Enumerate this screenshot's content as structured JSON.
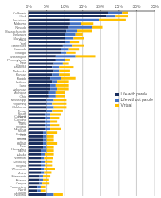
{
  "chart_data": {
    "type": "bar",
    "orientation": "horizontal",
    "stacked": true,
    "grid": true,
    "legend": "right",
    "categories": [
      "California",
      "Utah",
      "Louisiana",
      "Alabama",
      "Nevada",
      "Massachusetts",
      "Delaware",
      "Maryland",
      "New York",
      "Tennessee",
      "Colorado",
      "Georgia",
      "Washington",
      "Pennsylvania",
      "New Mexico",
      "Montana",
      "Nebraska",
      "Kansas",
      "Florida",
      "Indiana",
      "Iowa",
      "Arkansas",
      "Michigan",
      "Ohio",
      "Mississippi",
      "Wyoming",
      "Oklahoma",
      "Texas",
      "South Carolina",
      "North Carolina",
      "Illinois",
      "West Virginia",
      "Missouri",
      "South Dakota",
      "New Jersey",
      "Rhode Island",
      "Hawaii",
      "New Hampshire",
      "Idaho",
      "Alaska",
      "Vermont",
      "Kentucky",
      "Virginia",
      "Wisconsin",
      "Maine",
      "Minnesota",
      "Arizona",
      "Oregon",
      "Connecticut",
      "North Dakota",
      "National"
    ],
    "series": [
      {
        "name": "Life with parole",
        "color": "#1a2e5e",
        "values": [
          22.0,
          21.5,
          11.5,
          11.5,
          11.0,
          10.5,
          10.0,
          10.0,
          10.0,
          9.5,
          9.0,
          9.0,
          7.5,
          7.5,
          7.0,
          6.5,
          7.0,
          6.5,
          6.0,
          6.5,
          6.0,
          6.0,
          5.5,
          5.5,
          5.0,
          5.0,
          5.0,
          5.0,
          4.5,
          4.5,
          4.5,
          4.5,
          4.5,
          4.0,
          4.0,
          4.0,
          4.0,
          4.0,
          3.5,
          3.5,
          3.5,
          3.5,
          3.5,
          3.5,
          3.5,
          3.0,
          3.0,
          3.0,
          2.5,
          2.5,
          5.0
        ]
      },
      {
        "name": "Life without parole",
        "color": "#4472c4",
        "values": [
          4.0,
          2.5,
          8.0,
          3.0,
          6.5,
          3.0,
          3.0,
          2.5,
          1.5,
          2.5,
          2.0,
          1.5,
          5.5,
          2.5,
          2.5,
          2.0,
          1.5,
          2.0,
          3.0,
          1.5,
          1.5,
          2.0,
          2.0,
          2.0,
          2.0,
          1.5,
          2.0,
          1.5,
          1.5,
          1.5,
          1.5,
          1.5,
          1.5,
          1.0,
          1.0,
          1.0,
          1.0,
          1.0,
          1.5,
          1.0,
          0.8,
          1.0,
          1.0,
          0.8,
          0.8,
          1.0,
          1.0,
          0.8,
          0.8,
          0.8,
          2.0
        ]
      },
      {
        "name": "Virtual",
        "color": "#ffc000",
        "values": [
          1.5,
          3.5,
          7.5,
          3.5,
          3.0,
          4.0,
          2.0,
          3.0,
          2.5,
          3.5,
          3.0,
          2.5,
          5.5,
          1.5,
          1.5,
          4.0,
          3.0,
          3.0,
          4.0,
          3.0,
          3.5,
          3.0,
          2.5,
          2.5,
          3.5,
          4.0,
          3.5,
          3.0,
          3.0,
          2.5,
          2.0,
          2.5,
          3.0,
          3.0,
          2.0,
          2.0,
          3.0,
          2.0,
          2.0,
          2.5,
          2.5,
          2.0,
          2.0,
          3.0,
          2.0,
          2.0,
          1.5,
          2.0,
          1.5,
          1.5,
          2.5
        ]
      }
    ],
    "xlim": [
      0,
      35
    ],
    "xticks": [
      {
        "value": 0,
        "label": "0%"
      },
      {
        "value": 5,
        "label": "5%"
      },
      {
        "value": 10,
        "label": "10%"
      },
      {
        "value": 15,
        "label": "15%"
      },
      {
        "value": 20,
        "label": "20%"
      },
      {
        "value": 25,
        "label": "25%"
      },
      {
        "value": 30,
        "label": "30%"
      },
      {
        "value": 35,
        "label": "35%"
      }
    ]
  }
}
